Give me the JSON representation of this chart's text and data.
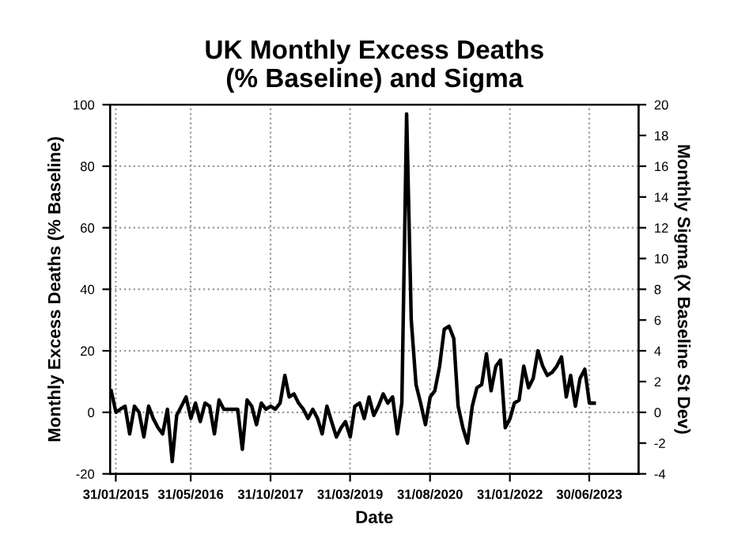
{
  "chart_data": {
    "type": "line",
    "title": "UK Monthly Excess Deaths\n(% Baseline) and Sigma",
    "xlabel": "Date",
    "ylabel": "Monthly Excess Deaths (% Baseline)",
    "y2label": "Monthly Sigma (X Baseline St Dev)",
    "x": [
      "2015-01",
      "2015-02",
      "2015-03",
      "2015-04",
      "2015-05",
      "2015-06",
      "2015-07",
      "2015-08",
      "2015-09",
      "2015-10",
      "2015-11",
      "2015-12",
      "2016-01",
      "2016-02",
      "2016-03",
      "2016-04",
      "2016-05",
      "2016-06",
      "2016-07",
      "2016-08",
      "2016-09",
      "2016-10",
      "2016-11",
      "2016-12",
      "2017-01",
      "2017-02",
      "2017-03",
      "2017-04",
      "2017-05",
      "2017-06",
      "2017-07",
      "2017-08",
      "2017-09",
      "2017-10",
      "2017-11",
      "2017-12",
      "2018-01",
      "2018-02",
      "2018-03",
      "2018-04",
      "2018-05",
      "2018-06",
      "2018-07",
      "2018-08",
      "2018-09",
      "2018-10",
      "2018-11",
      "2018-12",
      "2019-01",
      "2019-02",
      "2019-03",
      "2019-04",
      "2019-05",
      "2019-06",
      "2019-07",
      "2019-08",
      "2019-09",
      "2019-10",
      "2019-11",
      "2019-12",
      "2020-01",
      "2020-02",
      "2020-03",
      "2020-04",
      "2020-05",
      "2020-06",
      "2020-07",
      "2020-08",
      "2020-09",
      "2020-10",
      "2020-11",
      "2020-12",
      "2021-01",
      "2021-02",
      "2021-03",
      "2021-04",
      "2021-05",
      "2021-06",
      "2021-07",
      "2021-08",
      "2021-09",
      "2021-10",
      "2021-11",
      "2021-12",
      "2022-01",
      "2022-02",
      "2022-03",
      "2022-04",
      "2022-05",
      "2022-06",
      "2022-07",
      "2022-08",
      "2022-09",
      "2022-10",
      "2022-11",
      "2022-12",
      "2023-01",
      "2023-02",
      "2023-03",
      "2023-04",
      "2023-05",
      "2023-06",
      "2023-07",
      "2023-08"
    ],
    "series": [
      {
        "color": "#000000",
        "values": [
          7,
          0,
          1,
          2,
          -7,
          2,
          0,
          -8,
          2,
          -2,
          -5,
          -7,
          1,
          -16,
          -1,
          2,
          5,
          -2,
          3,
          -3,
          3,
          2,
          -7,
          4,
          1,
          1,
          1,
          1,
          -12,
          4,
          2,
          -4,
          3,
          1,
          2,
          1,
          3,
          12,
          5,
          6,
          3,
          1,
          -2,
          1,
          -2,
          -7,
          2,
          -3,
          -8,
          -5,
          -3,
          -8,
          2,
          3,
          -2,
          5,
          -1,
          2,
          6,
          3,
          5,
          -7,
          3,
          97,
          30,
          9,
          3,
          -4,
          5,
          7,
          15,
          27,
          28,
          24,
          2,
          -5,
          -10,
          2,
          8,
          9,
          19,
          7,
          15,
          17,
          -5,
          -2,
          3,
          4,
          15,
          8,
          11,
          20,
          15,
          12,
          13,
          15,
          18,
          5,
          12,
          2,
          11,
          14,
          3,
          3
        ]
      }
    ],
    "xlim": [
      "2014-12-25",
      "2024-05-15"
    ],
    "xticks": [
      {
        "value": "2015-01-31",
        "label": "31/01/2015"
      },
      {
        "value": "2016-05-31",
        "label": "31/05/2016"
      },
      {
        "value": "2017-10-31",
        "label": "31/10/2017"
      },
      {
        "value": "2019-03-31",
        "label": "31/03/2019"
      },
      {
        "value": "2020-08-31",
        "label": "31/08/2020"
      },
      {
        "value": "2022-01-31",
        "label": "31/01/2022"
      },
      {
        "value": "2023-06-30",
        "label": "30/06/2023"
      }
    ],
    "ylim": [
      -20,
      100
    ],
    "yticks": [
      -20,
      0,
      20,
      40,
      60,
      80,
      100
    ],
    "y2lim": [
      -4,
      20
    ],
    "y2ticks": [
      -4,
      -2,
      0,
      2,
      4,
      6,
      8,
      10,
      12,
      14,
      16,
      18,
      20
    ],
    "grid": true,
    "line_style": "solid"
  }
}
